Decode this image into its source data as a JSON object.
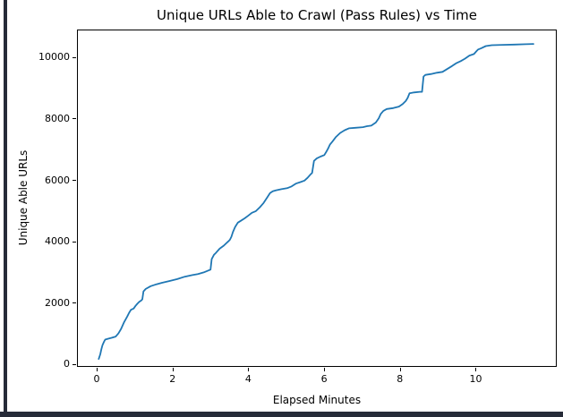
{
  "window": {
    "background": "#ffffff",
    "border_color": "#262b38"
  },
  "chart_data": {
    "type": "line",
    "title": "Unique URLs Able to Crawl (Pass Rules) vs Time",
    "xlabel": "Elapsed Minutes",
    "ylabel": "Unique Able URLs",
    "grid": false,
    "legend_position": "none",
    "line_color": "#1f77b4",
    "line_width": 1.8,
    "xlim": [
      -0.52,
      12.09
    ],
    "ylim": [
      -30,
      10900
    ],
    "x_ticks": [
      0,
      2,
      4,
      6,
      8,
      10
    ],
    "y_ticks": [
      0,
      2000,
      4000,
      6000,
      8000,
      10000
    ],
    "series": [
      {
        "name": "Unique Able URLs",
        "x": [
          0.03,
          0.07,
          0.1,
          0.13,
          0.17,
          0.2,
          0.28,
          0.38,
          0.48,
          0.55,
          0.62,
          0.7,
          0.78,
          0.83,
          0.88,
          0.95,
          1.0,
          1.05,
          1.1,
          1.15,
          1.18,
          1.21,
          1.27,
          1.4,
          1.55,
          1.7,
          1.9,
          2.1,
          2.3,
          2.5,
          2.65,
          2.8,
          2.92,
          2.98,
          3.01,
          3.07,
          3.12,
          3.22,
          3.33,
          3.45,
          3.49,
          3.53,
          3.57,
          3.63,
          3.7,
          3.78,
          3.88,
          3.97,
          4.07,
          4.17,
          4.28,
          4.38,
          4.47,
          4.55,
          4.62,
          4.7,
          4.85,
          5.0,
          5.12,
          5.23,
          5.35,
          5.46,
          5.54,
          5.61,
          5.66,
          5.71,
          5.78,
          5.88,
          5.98,
          6.03,
          6.08,
          6.13,
          6.2,
          6.28,
          6.4,
          6.52,
          6.63,
          6.8,
          7.0,
          7.11,
          7.22,
          7.34,
          7.42,
          7.47,
          7.54,
          7.63,
          7.8,
          7.95,
          8.05,
          8.13,
          8.18,
          8.23,
          8.35,
          8.5,
          8.56,
          8.6,
          8.65,
          8.8,
          8.95,
          9.1,
          9.22,
          9.35,
          9.46,
          9.58,
          9.69,
          9.81,
          9.93,
          10.0,
          10.04,
          10.12,
          10.24,
          10.4,
          10.7,
          11.0,
          11.3,
          11.5
        ],
        "y": [
          200,
          350,
          520,
          650,
          760,
          830,
          860,
          890,
          930,
          1030,
          1180,
          1400,
          1580,
          1700,
          1800,
          1840,
          1930,
          2000,
          2060,
          2100,
          2140,
          2400,
          2480,
          2570,
          2630,
          2680,
          2740,
          2800,
          2880,
          2930,
          2965,
          3020,
          3080,
          3110,
          3450,
          3590,
          3650,
          3790,
          3890,
          4030,
          4080,
          4180,
          4330,
          4500,
          4640,
          4700,
          4780,
          4860,
          4960,
          5010,
          5140,
          5280,
          5450,
          5600,
          5660,
          5690,
          5730,
          5760,
          5820,
          5910,
          5960,
          6010,
          6100,
          6200,
          6260,
          6650,
          6730,
          6790,
          6840,
          6940,
          7050,
          7180,
          7290,
          7420,
          7560,
          7650,
          7710,
          7730,
          7750,
          7780,
          7800,
          7900,
          8040,
          8180,
          8280,
          8340,
          8370,
          8420,
          8500,
          8600,
          8700,
          8850,
          8880,
          8900,
          8900,
          9400,
          9450,
          9480,
          9520,
          9550,
          9640,
          9740,
          9830,
          9900,
          9980,
          10080,
          10130,
          10230,
          10280,
          10320,
          10390,
          10420,
          10430,
          10440,
          10450,
          10460
        ]
      }
    ]
  }
}
